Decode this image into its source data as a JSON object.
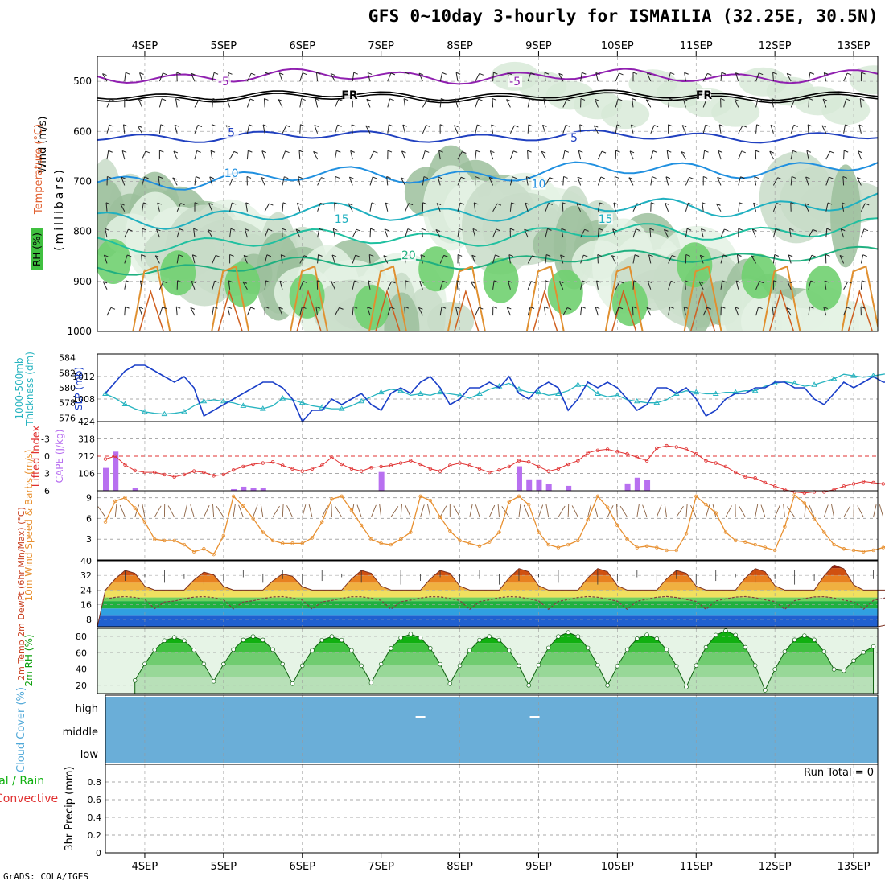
{
  "chart_data": {
    "type": "meteogram",
    "title": "GFS 0~10day 3-hourly for ISMAILIA (32.25E, 30.5N)",
    "credit": "GrADS: COLA/IGES",
    "dates": [
      "4SEP",
      "5SEP",
      "6SEP",
      "7SEP",
      "8SEP",
      "9SEP",
      "10SEP",
      "11SEP",
      "12SEP",
      "13SEP"
    ],
    "colors": {
      "frame": "#000000",
      "grid": "#999999",
      "slp": "#1a3fc8",
      "thick": "#28b4c0",
      "li": "#e03030",
      "cape": "#b870f0",
      "wind": "#e89030",
      "temp_hi": "#c83010",
      "rh": "#10b010",
      "cloud": "#6aaed8"
    },
    "profile": {
      "ylabel": "(millibars)",
      "legend": [
        "Wind (m/s)",
        "Temperature (°C)",
        "RH (%)"
      ],
      "yticks": [
        500,
        600,
        700,
        800,
        900,
        1000
      ],
      "contour_labels": [
        {
          "t": "-5",
          "x": 1.5,
          "p": 505,
          "c": "#9020b0"
        },
        {
          "t": "-5",
          "x": 5.2,
          "p": 505,
          "c": "#9020b0"
        },
        {
          "t": "FR",
          "x": 3.1,
          "p": 532,
          "c": "#000000"
        },
        {
          "t": "FR",
          "x": 7.6,
          "p": 532,
          "c": "#000000"
        },
        {
          "t": "5",
          "x": 1.6,
          "p": 607,
          "c": "#2040c0"
        },
        {
          "t": "5",
          "x": 5.95,
          "p": 617,
          "c": "#2040c0"
        },
        {
          "t": "10",
          "x": 1.6,
          "p": 688,
          "c": "#2090e0"
        },
        {
          "t": "10",
          "x": 5.5,
          "p": 710,
          "c": "#2090e0"
        },
        {
          "t": "15",
          "x": 3.0,
          "p": 780,
          "c": "#20b0c0"
        },
        {
          "t": "15",
          "x": 6.35,
          "p": 780,
          "c": "#20b0c0"
        },
        {
          "t": "20",
          "x": 3.85,
          "p": 852,
          "c": "#20b080"
        }
      ]
    },
    "slp_panel": {
      "ylabel_left": "Thickness (dm)",
      "ylabel_right": "SLP (mb)",
      "ylabel_main": "1000-500mb",
      "thick_ticks": [
        576,
        578,
        580,
        582,
        584
      ],
      "slp_ticks": [
        1008,
        1012
      ],
      "slp_range": [
        1004,
        1016
      ],
      "thick_range": [
        575.5,
        584.5
      ],
      "slp": [
        1009,
        1011,
        1013,
        1014,
        1014,
        1013,
        1012,
        1011,
        1012,
        1010,
        1005,
        1006,
        1007,
        1008,
        1009,
        1010,
        1011,
        1011,
        1010,
        1008,
        1004,
        1006,
        1006,
        1008,
        1007,
        1008,
        1009,
        1007,
        1006,
        1009,
        1010,
        1009,
        1011,
        1012,
        1010,
        1007,
        1008,
        1010,
        1010,
        1011,
        1010,
        1012,
        1009,
        1008,
        1010,
        1011,
        1010,
        1006,
        1008,
        1011,
        1010,
        1011,
        1010,
        1008,
        1006,
        1007,
        1010,
        1010,
        1009,
        1010,
        1008,
        1005,
        1006,
        1008,
        1009,
        1009,
        1010,
        1010,
        1011,
        1011,
        1010,
        1010,
        1008,
        1007,
        1009,
        1011,
        1010,
        1011,
        1012,
        1011,
        1011,
        1012,
        1010,
        1011,
        1012,
        1013,
        1010,
        1008,
        1010,
        1012,
        1013,
        1014,
        1012,
        1012,
        1011,
        1011,
        1012,
        1013,
        1012,
        1013
      ],
      "thickness": [
        579.2,
        578.6,
        577.8,
        577.2,
        576.8,
        576.6,
        576.5,
        576.6,
        576.8,
        577.6,
        578.2,
        578.4,
        578.2,
        578.0,
        577.6,
        577.4,
        577.2,
        577.6,
        578.6,
        578.4,
        578.0,
        577.6,
        577.4,
        577.2,
        577.2,
        577.6,
        578.2,
        578.8,
        579.4,
        579.8,
        579.6,
        579.0,
        579.2,
        579.0,
        579.4,
        579.2,
        579.0,
        578.6,
        579.2,
        579.8,
        580.2,
        580.6,
        579.8,
        579.4,
        579.4,
        579.0,
        579.2,
        579.6,
        580.4,
        580.2,
        579.2,
        578.8,
        579.0,
        578.4,
        578.2,
        578.0,
        578.0,
        578.4,
        579.2,
        579.6,
        579.4,
        579.2,
        579.2,
        579.4,
        579.4,
        579.6,
        579.6,
        580.2,
        580.6,
        580.8,
        580.6,
        580.2,
        580.4,
        580.8,
        581.2,
        581.8,
        581.6,
        581.4,
        581.6,
        581.8,
        582.0,
        582.6,
        583.0,
        583.4,
        583.2,
        582.8,
        582.2,
        581.8,
        581.2,
        580.8,
        580.4,
        580.2,
        580.6,
        581.0
      ],
      "thick_labels": [
        576,
        578,
        580,
        582,
        584
      ]
    },
    "cape_panel": {
      "ylabel_left": "Lifted Index",
      "ylabel_right": "CAPE (J/kg)",
      "li_ticks": [
        "-3",
        "0",
        "3",
        "6"
      ],
      "cape_ticks": [
        "106",
        "212",
        "318",
        "424"
      ],
      "li_range": [
        6,
        -6
      ],
      "cape_range": [
        0,
        424
      ],
      "li": [
        0.5,
        0,
        1.5,
        2.5,
        2.8,
        2.8,
        3.2,
        3.6,
        3.2,
        2.6,
        2.8,
        3.4,
        3.2,
        2.4,
        1.8,
        1.4,
        1.2,
        1.0,
        1.6,
        2.2,
        2.6,
        2.2,
        1.6,
        0.2,
        1.4,
        2.2,
        2.6,
        2.0,
        1.8,
        1.6,
        1.2,
        0.8,
        1.4,
        2.2,
        2.6,
        1.6,
        1.2,
        1.6,
        2.2,
        2.8,
        2.4,
        1.8,
        0.8,
        1.0,
        1.8,
        2.6,
        2.2,
        1.4,
        0.8,
        -0.6,
        -1.0,
        -1.2,
        -0.8,
        -0.4,
        0.2,
        0.8,
        -1.4,
        -1.8,
        -1.6,
        -1.2,
        -0.4,
        0.8,
        1.2,
        1.8,
        2.8,
        3.6,
        3.8,
        4.6,
        5.2,
        5.8,
        6.2,
        6.4,
        6.2,
        6.2,
        5.8,
        5.2,
        4.8,
        4.4,
        4.6,
        4.8,
        5.2,
        5.6,
        5.8,
        6.0,
        6.2,
        5.8,
        5.2,
        4.2,
        3.8,
        4.0,
        4.4,
        4.8,
        5.4,
        5.8,
        6.2
      ],
      "cape": [
        140,
        240,
        0,
        18,
        0,
        0,
        0,
        0,
        0,
        0,
        0,
        0,
        0,
        10,
        25,
        18,
        18,
        0,
        0,
        0,
        0,
        0,
        0,
        0,
        0,
        0,
        0,
        0,
        115,
        0,
        0,
        0,
        0,
        0,
        0,
        0,
        0,
        0,
        0,
        0,
        0,
        0,
        150,
        70,
        70,
        40,
        0,
        30,
        0,
        0,
        0,
        0,
        0,
        45,
        80,
        65,
        0,
        0,
        0,
        0,
        0,
        0,
        0,
        0,
        0,
        0,
        0,
        0,
        0,
        0,
        0,
        0,
        0,
        0,
        0,
        0,
        0,
        0,
        0,
        0,
        0,
        0,
        0,
        0,
        0,
        0,
        0,
        0,
        0,
        0,
        0,
        0,
        0,
        0,
        0,
        0,
        0,
        0
      ]
    },
    "wind_panel": {
      "ylabel": "10m Wind Speed & Barbs (m/s)",
      "yticks": [
        3,
        6,
        9
      ],
      "range": [
        0,
        10
      ],
      "speed": [
        5.5,
        8.5,
        9.0,
        7.5,
        5.5,
        3.0,
        2.8,
        2.8,
        2.2,
        1.2,
        1.6,
        0.8,
        3.5,
        9.2,
        7.8,
        6.0,
        4.0,
        2.8,
        2.4,
        2.4,
        2.4,
        3.2,
        5.5,
        8.8,
        9.2,
        7.2,
        5.0,
        3.0,
        2.4,
        2.2,
        3.0,
        4.0,
        9.2,
        8.6,
        6.2,
        4.2,
        2.8,
        2.4,
        2.0,
        2.6,
        4.0,
        8.4,
        9.2,
        8.0,
        4.0,
        2.2,
        1.8,
        2.2,
        2.8,
        5.8,
        9.2,
        7.6,
        5.0,
        3.0,
        1.8,
        2.0,
        1.8,
        1.4,
        1.4,
        3.8,
        9.2,
        8.0,
        6.8,
        4.0,
        2.8,
        2.6,
        2.2,
        1.8,
        1.4,
        4.8,
        9.4,
        8.2,
        6.0,
        4.0,
        2.2,
        1.6,
        1.4,
        1.2,
        1.4,
        1.8,
        2.4,
        8.8,
        7.4,
        6.0,
        3.8,
        2.6,
        1.8,
        1.6,
        1.6,
        2.2,
        8.8,
        6.2,
        4.2,
        2.4,
        2.0,
        1.8,
        2.0,
        2.4,
        3.0,
        4.4
      ]
    },
    "temp_panel": {
      "ylabel": "2m Temp 2m DewPt (6hr Min/Max) (°C)",
      "yticks": [
        8,
        16,
        24,
        32,
        40
      ],
      "range": [
        4,
        40
      ],
      "temp_period": 8,
      "temp_min": 24,
      "temp_max": [
        35,
        34,
        33,
        35,
        35,
        36,
        36,
        35,
        36,
        38
      ],
      "dewpt_base": 19
    },
    "rh_panel": {
      "ylabel": "2m RH (%)",
      "yticks": [
        20,
        40,
        60,
        80
      ],
      "range": [
        10,
        90
      ],
      "peaks": [
        79,
        80,
        80,
        83,
        80,
        85,
        82,
        87,
        81,
        70
      ],
      "troughs": [
        26,
        25,
        22,
        23,
        22,
        20,
        20,
        18,
        14,
        38
      ]
    },
    "cloud_panel": {
      "ylabel": "Cloud Cover (%)",
      "levels": [
        "high",
        "middle",
        "low"
      ],
      "markers": [
        4.0,
        5.45
      ]
    },
    "precip_panel": {
      "ylabel": "3hr Precip (mm)",
      "legend_total": "Total / Rain",
      "legend_conv": "Convective",
      "run_total": "Run Total = 0",
      "yticks": [
        "0",
        "0.2",
        "0.4",
        "0.6",
        "0.8"
      ],
      "range": [
        0,
        1
      ]
    }
  }
}
